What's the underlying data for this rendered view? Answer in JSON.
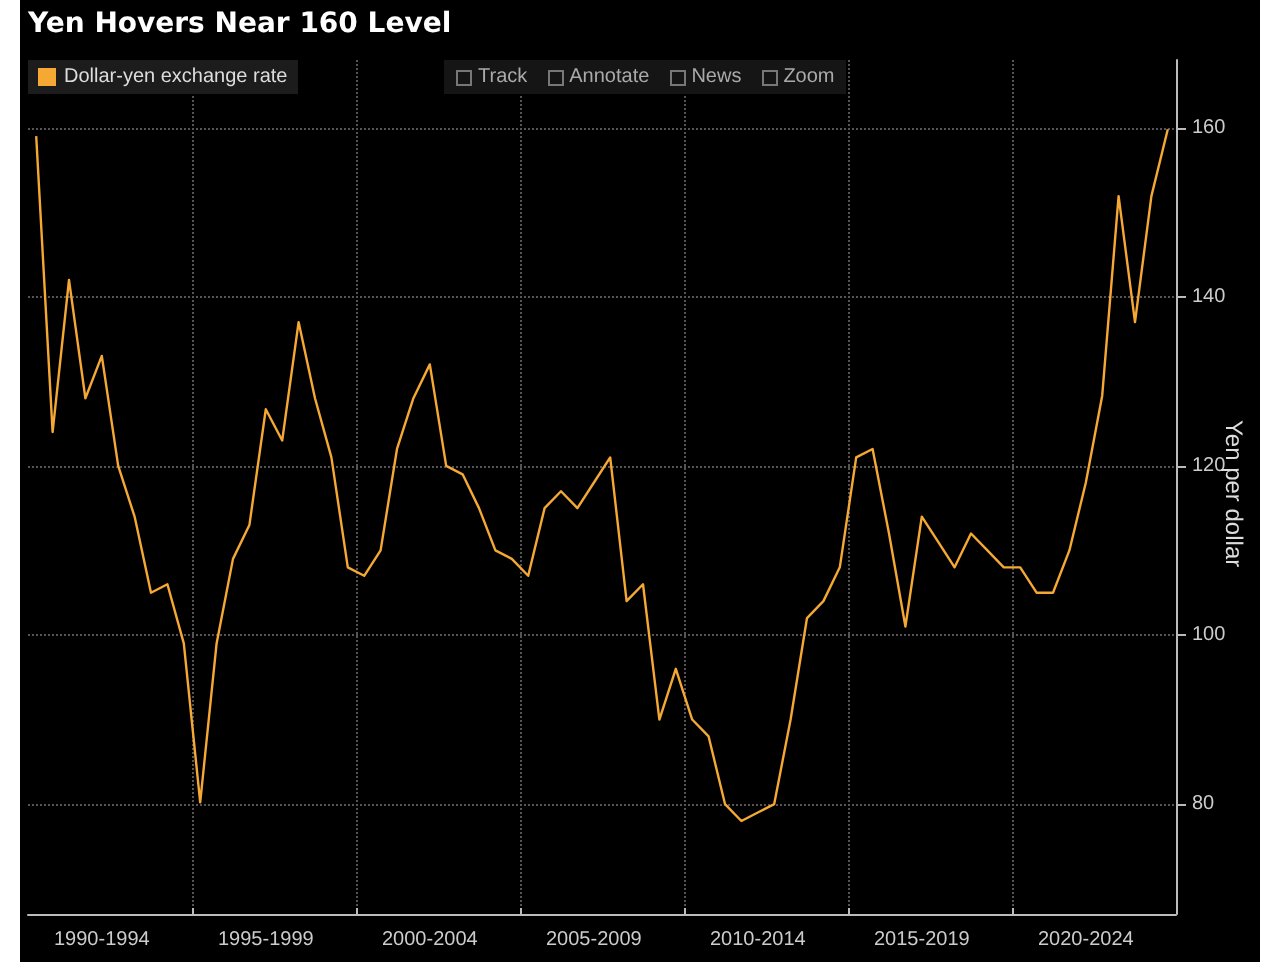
{
  "chart_data": {
    "type": "line",
    "title": "Yen Hovers Near 160 Level",
    "ylabel": "Yen per dollar",
    "annotations": [
      "Track",
      "Annotate",
      "News",
      "Zoom"
    ],
    "categories": [
      null,
      null,
      null,
      null,
      "1990-1994",
      null,
      null,
      null,
      null,
      null,
      null,
      null,
      null,
      null,
      "1995-1999",
      null,
      null,
      null,
      null,
      null,
      null,
      null,
      null,
      null,
      "2000-2004",
      null,
      null,
      null,
      null,
      null,
      null,
      null,
      null,
      null,
      "2005-2009",
      null,
      null,
      null,
      null,
      null,
      null,
      null,
      null,
      null,
      "2010-2014",
      null,
      null,
      null,
      null,
      null,
      null,
      null,
      null,
      null,
      "2015-2019",
      null,
      null,
      null,
      null,
      null,
      null,
      null,
      null,
      null,
      "2020-2024",
      null,
      null,
      null,
      null,
      null
    ],
    "series": [
      {
        "name": "Dollar-yen exchange rate",
        "color": "#f5a833",
        "values": [
          159,
          124,
          142,
          128,
          133,
          120,
          114,
          105,
          106,
          99,
          80.2,
          99,
          109,
          113,
          126.7,
          123,
          137,
          128,
          121,
          108,
          107,
          110,
          122,
          128,
          132,
          120,
          119,
          115,
          110,
          109,
          107,
          115,
          117,
          115,
          118,
          121,
          104,
          106,
          90,
          96,
          90,
          88,
          80,
          78,
          79,
          80,
          90,
          102,
          104,
          108,
          121,
          122,
          112,
          101,
          114,
          111,
          108,
          112,
          110,
          108,
          108,
          105,
          105,
          110,
          118,
          128.3,
          151.9,
          137,
          151.9,
          159.8
        ]
      }
    ],
    "ylim": [
      67,
      168
    ],
    "yticks": [
      80,
      100,
      120,
      140,
      160
    ],
    "grid": true,
    "legend": "top left",
    "marker": "none",
    "line_style": "solid"
  }
}
